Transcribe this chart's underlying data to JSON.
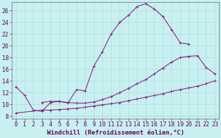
{
  "xlabel": "Windchill (Refroidissement éolien,°C)",
  "background_color": "#c8f0f0",
  "grid_color": "#aadddd",
  "line_color": "#882288",
  "xlim": [
    -0.5,
    23.5
  ],
  "ylim": [
    7.5,
    27.5
  ],
  "xticks": [
    0,
    1,
    2,
    3,
    4,
    5,
    6,
    7,
    8,
    9,
    10,
    11,
    12,
    13,
    14,
    15,
    16,
    17,
    18,
    19,
    20,
    21,
    22,
    23
  ],
  "yticks": [
    8,
    10,
    12,
    14,
    16,
    18,
    20,
    22,
    24,
    26
  ],
  "curve1_x": [
    0,
    1,
    2,
    3,
    4,
    5,
    6,
    7,
    8,
    9,
    10,
    11,
    12,
    13,
    14,
    15,
    16,
    17,
    18,
    19,
    20
  ],
  "curve1_y": [
    13.0,
    11.5,
    9.0,
    8.8,
    10.3,
    10.5,
    10.2,
    12.5,
    12.3,
    16.5,
    19.0,
    22.0,
    24.0,
    25.2,
    26.7,
    27.2,
    26.3,
    25.0,
    22.8,
    20.5,
    20.3
  ],
  "curve2_x": [
    3,
    4,
    5,
    6,
    7,
    8,
    9,
    10,
    11,
    12,
    13,
    14,
    15,
    16,
    17,
    18,
    19,
    20,
    21,
    22,
    23
  ],
  "curve2_y": [
    10.3,
    10.5,
    10.5,
    10.3,
    10.2,
    10.2,
    10.4,
    10.8,
    11.3,
    12.0,
    12.7,
    13.5,
    14.2,
    15.2,
    16.2,
    17.2,
    18.0,
    18.2,
    18.3,
    16.3,
    15.2
  ],
  "curve3_x": [
    0,
    3,
    4,
    5,
    6,
    7,
    8,
    9,
    10,
    11,
    12,
    13,
    14,
    15,
    16,
    17,
    18,
    19,
    20,
    21,
    22,
    23
  ],
  "curve3_y": [
    8.5,
    9.0,
    9.0,
    9.1,
    9.2,
    9.3,
    9.5,
    9.7,
    9.9,
    10.1,
    10.3,
    10.6,
    10.9,
    11.2,
    11.5,
    11.8,
    12.2,
    12.5,
    12.8,
    13.1,
    13.5,
    14.0
  ],
  "marker_size": 3,
  "font_color": "#660066",
  "font_size_axis": 6.5,
  "font_size_tick": 6
}
